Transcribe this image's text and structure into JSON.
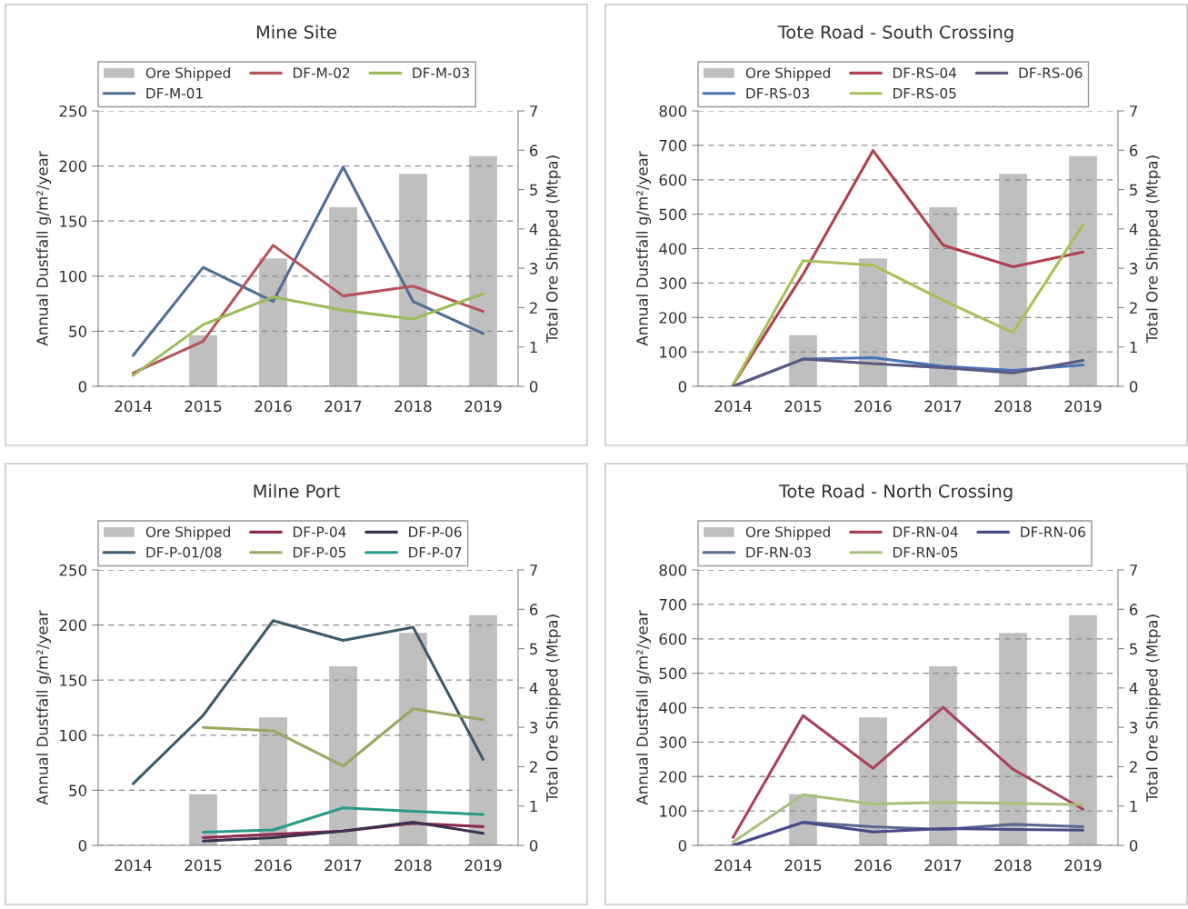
{
  "chart_data": [
    {
      "type": "line",
      "title": "Mine Site",
      "ylabel": "Annual Dustfall g/m²/year",
      "y2label": "Total Ore Shipped (Mtpa)",
      "categories": [
        "2014",
        "2015",
        "2016",
        "2017",
        "2018",
        "2019"
      ],
      "ylim": [
        0,
        250
      ],
      "yticks": [
        0,
        50,
        100,
        150,
        200,
        250
      ],
      "y2lim": [
        0,
        7
      ],
      "y2ticks": [
        0,
        1,
        2,
        3,
        4,
        5,
        6,
        7
      ],
      "grid": "y",
      "legend": "top left",
      "series": [
        {
          "name": "Ore Shipped",
          "type": "bar",
          "axis": "y2",
          "color": "#bfbfbf",
          "values": [
            null,
            1.3,
            3.25,
            4.55,
            5.4,
            5.85
          ]
        },
        {
          "name": "DF-M-01",
          "color": "#4f6e96",
          "values": [
            28,
            108,
            77,
            199,
            77,
            48
          ]
        },
        {
          "name": "DF-M-02",
          "color": "#b5535b",
          "values": [
            12,
            41,
            128,
            82,
            91,
            68
          ]
        },
        {
          "name": "DF-M-03",
          "color": "#9bbb59",
          "values": [
            10,
            56,
            81,
            69,
            61,
            84
          ]
        }
      ]
    },
    {
      "type": "line",
      "title": "Tote Road - South Crossing",
      "ylabel": "Annual Dustfall g/m²/year",
      "y2label": "Total Ore Shipped (Mtpa)",
      "categories": [
        "2014",
        "2015",
        "2016",
        "2017",
        "2018",
        "2019"
      ],
      "ylim": [
        0,
        800
      ],
      "yticks": [
        0,
        100,
        200,
        300,
        400,
        500,
        600,
        700,
        800
      ],
      "y2lim": [
        0,
        7
      ],
      "y2ticks": [
        0,
        1,
        2,
        3,
        4,
        5,
        6,
        7
      ],
      "grid": "y",
      "legend": "top left",
      "series": [
        {
          "name": "Ore Shipped",
          "type": "bar",
          "axis": "y2",
          "color": "#bfbfbf",
          "values": [
            null,
            1.3,
            3.25,
            4.55,
            5.4,
            5.85
          ]
        },
        {
          "name": "DF-RS-03",
          "color": "#4a72b8",
          "values": [
            0,
            79,
            83,
            58,
            46,
            62
          ]
        },
        {
          "name": "DF-RS-04",
          "color": "#b0404f",
          "values": [
            5,
            325,
            685,
            410,
            347,
            390
          ]
        },
        {
          "name": "DF-RS-05",
          "color": "#a8c05a",
          "values": [
            5,
            365,
            352,
            250,
            156,
            470
          ]
        },
        {
          "name": "DF-RS-06",
          "color": "#5a5a80",
          "values": [
            0,
            79,
            66,
            54,
            39,
            75
          ]
        }
      ]
    },
    {
      "type": "line",
      "title": "Milne Port",
      "ylabel": "Annual Dustfall g/m²/year",
      "y2label": "Total Ore Shipped (Mtpa)",
      "categories": [
        "2014",
        "2015",
        "2016",
        "2017",
        "2018",
        "2019"
      ],
      "ylim": [
        0,
        250
      ],
      "yticks": [
        0,
        50,
        100,
        150,
        200,
        250
      ],
      "y2lim": [
        0,
        7
      ],
      "y2ticks": [
        0,
        1,
        2,
        3,
        4,
        5,
        6,
        7
      ],
      "grid": "y",
      "legend": "top left",
      "series": [
        {
          "name": "Ore Shipped",
          "type": "bar",
          "axis": "y2",
          "color": "#bfbfbf",
          "values": [
            null,
            1.3,
            3.25,
            4.55,
            5.4,
            5.85
          ]
        },
        {
          "name": "DF-P-01/08",
          "color": "#3c5a6a",
          "values": [
            56,
            118,
            204,
            186,
            198,
            78
          ]
        },
        {
          "name": "DF-P-04",
          "color": "#8b2a52",
          "values": [
            null,
            7,
            10,
            13,
            20,
            17
          ]
        },
        {
          "name": "DF-P-05",
          "color": "#9aa862",
          "values": [
            null,
            107,
            104,
            72,
            124,
            114
          ]
        },
        {
          "name": "DF-P-06",
          "color": "#3a3050",
          "values": [
            null,
            4,
            7,
            13,
            21,
            11
          ]
        },
        {
          "name": "DF-P-07",
          "color": "#2a9a8a",
          "values": [
            null,
            12,
            14,
            34,
            31,
            28
          ]
        }
      ]
    },
    {
      "type": "line",
      "title": "Tote Road - North Crossing",
      "ylabel": "Annual Dustfall g/m²/year",
      "y2label": "Total Ore Shipped (Mtpa)",
      "categories": [
        "2014",
        "2015",
        "2016",
        "2017",
        "2018",
        "2019"
      ],
      "ylim": [
        0,
        800
      ],
      "yticks": [
        0,
        100,
        200,
        300,
        400,
        500,
        600,
        700,
        800
      ],
      "y2lim": [
        0,
        7
      ],
      "y2ticks": [
        0,
        1,
        2,
        3,
        4,
        5,
        6,
        7
      ],
      "grid": "y",
      "legend": "top left",
      "series": [
        {
          "name": "Ore Shipped",
          "type": "bar",
          "axis": "y2",
          "color": "#bfbfbf",
          "values": [
            null,
            1.3,
            3.25,
            4.55,
            5.4,
            5.85
          ]
        },
        {
          "name": "DF-RN-03",
          "color": "#5b6a90",
          "values": [
            0,
            67,
            54,
            46,
            61,
            54
          ]
        },
        {
          "name": "DF-RN-04",
          "color": "#a8405a",
          "values": [
            23,
            377,
            224,
            401,
            221,
            105
          ]
        },
        {
          "name": "DF-RN-05",
          "color": "#a9c07a",
          "values": [
            10,
            147,
            120,
            125,
            122,
            118
          ]
        },
        {
          "name": "DF-RN-06",
          "color": "#4a4a8a",
          "values": [
            0,
            67,
            39,
            49,
            46,
            44
          ]
        }
      ]
    }
  ]
}
